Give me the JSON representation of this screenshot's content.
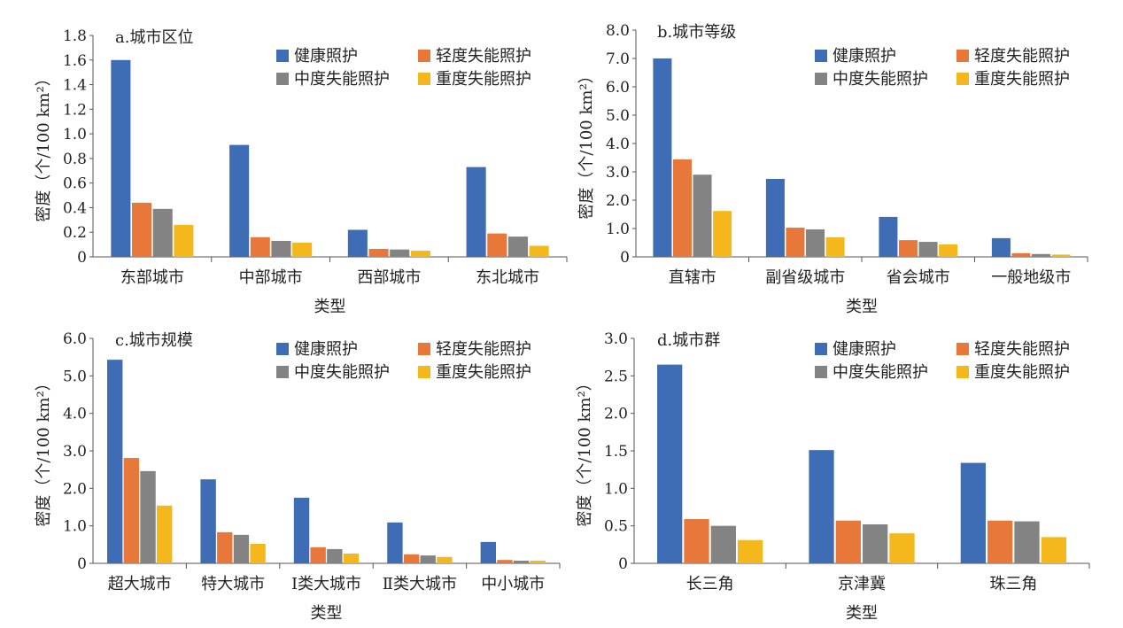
{
  "colors": [
    "#3F6DB5",
    "#E8783A",
    "#838383",
    "#F4B81D"
  ],
  "chart_data": [
    {
      "type": "bar",
      "title": "a.城市区位",
      "xlabel": "类型",
      "ylabel": "密度（个/100 km²）",
      "ylim": [
        0,
        1.8
      ],
      "yticks": [
        "0",
        "0.2",
        "0.4",
        "0.6",
        "0.8",
        "1.0",
        "1.2",
        "1.4",
        "1.6",
        "1.8"
      ],
      "categories": [
        "东部城市",
        "中部城市",
        "西部城市",
        "东北城市"
      ],
      "series": [
        {
          "name": "健康照护",
          "values": [
            1.6,
            0.91,
            0.22,
            0.73
          ]
        },
        {
          "name": "轻度失能照护",
          "values": [
            0.44,
            0.16,
            0.065,
            0.19
          ]
        },
        {
          "name": "中度失能照护",
          "values": [
            0.39,
            0.13,
            0.06,
            0.165
          ]
        },
        {
          "name": "重度失能照护",
          "values": [
            0.26,
            0.115,
            0.05,
            0.09
          ]
        }
      ]
    },
    {
      "type": "bar",
      "title": "b.城市等级",
      "xlabel": "类型",
      "ylabel": "密度（个/100 km²）",
      "ylim": [
        0,
        8
      ],
      "yticks": [
        "0",
        "1.0",
        "2.0",
        "3.0",
        "4.0",
        "5.0",
        "6.0",
        "7.0",
        "8.0"
      ],
      "categories": [
        "直辖市",
        "副省级城市",
        "省会城市",
        "一般地级市"
      ],
      "series": [
        {
          "name": "健康照护",
          "values": [
            7.0,
            2.75,
            1.41,
            0.66
          ]
        },
        {
          "name": "轻度失能照护",
          "values": [
            3.44,
            1.03,
            0.59,
            0.13
          ]
        },
        {
          "name": "中度失能照护",
          "values": [
            2.9,
            0.97,
            0.53,
            0.1
          ]
        },
        {
          "name": "重度失能照护",
          "values": [
            1.62,
            0.69,
            0.44,
            0.08
          ]
        }
      ]
    },
    {
      "type": "bar",
      "title": "c.城市规模",
      "xlabel": "类型",
      "ylabel": "密度（个/100 km²）",
      "ylim": [
        0,
        6
      ],
      "yticks": [
        "0",
        "1.0",
        "2.0",
        "3.0",
        "4.0",
        "5.0",
        "6.0"
      ],
      "categories": [
        "超大城市",
        "特大城市",
        "Ⅰ类大城市",
        "Ⅱ类大城市",
        "中小城市"
      ],
      "series": [
        {
          "name": "健康照护",
          "values": [
            5.43,
            2.24,
            1.75,
            1.09,
            0.57
          ]
        },
        {
          "name": "轻度失能照护",
          "values": [
            2.81,
            0.83,
            0.43,
            0.24,
            0.09
          ]
        },
        {
          "name": "中度失能照护",
          "values": [
            2.46,
            0.76,
            0.38,
            0.21,
            0.07
          ]
        },
        {
          "name": "重度失能照护",
          "values": [
            1.54,
            0.52,
            0.26,
            0.17,
            0.07
          ]
        }
      ]
    },
    {
      "type": "bar",
      "title": "d.城市群",
      "xlabel": "类型",
      "ylabel": "密度（个/100 km²）",
      "ylim": [
        0,
        3
      ],
      "yticks": [
        "0",
        "0.5",
        "1.0",
        "1.5",
        "2.0",
        "2.5",
        "3.0"
      ],
      "categories": [
        "长三角",
        "京津冀",
        "珠三角"
      ],
      "series": [
        {
          "name": "健康照护",
          "values": [
            2.65,
            1.51,
            1.34
          ]
        },
        {
          "name": "轻度失能照护",
          "values": [
            0.59,
            0.57,
            0.57
          ]
        },
        {
          "name": "中度失能照护",
          "values": [
            0.5,
            0.52,
            0.56
          ]
        },
        {
          "name": "重度失能照护",
          "values": [
            0.31,
            0.4,
            0.35
          ]
        }
      ]
    }
  ]
}
